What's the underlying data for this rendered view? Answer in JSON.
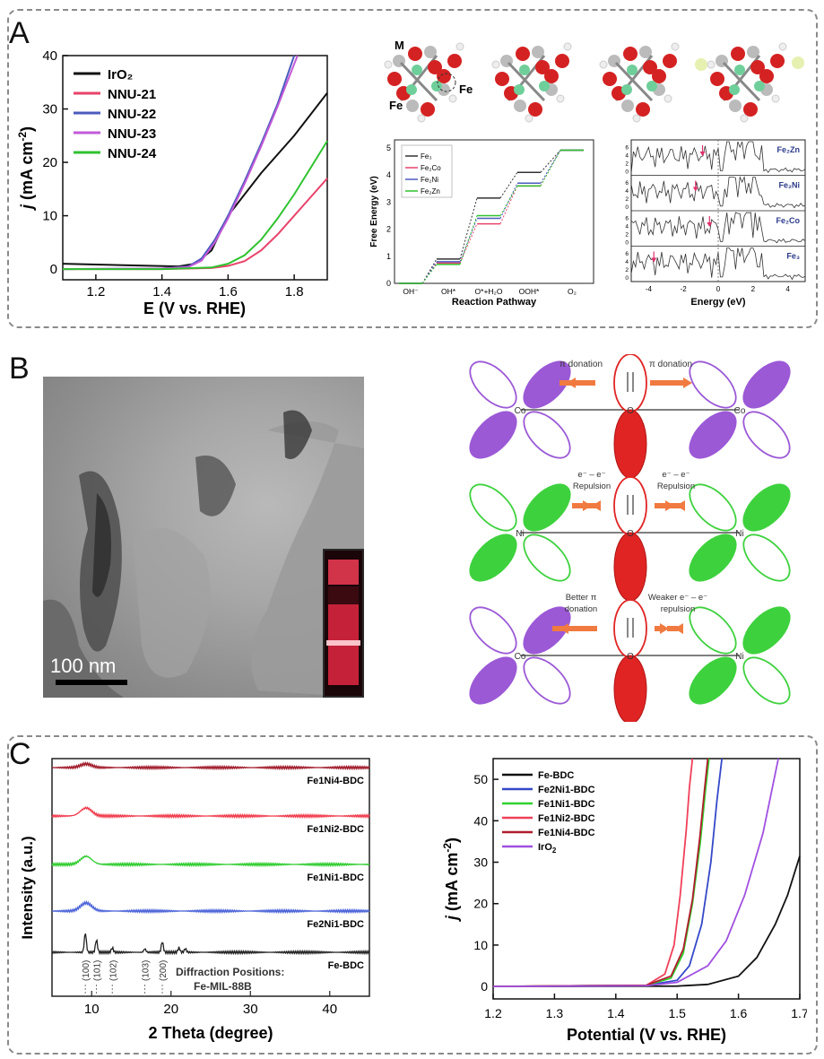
{
  "panels": {
    "a": "A",
    "b": "B",
    "c": "C"
  },
  "panelA": {
    "chart_data": {
      "type": "line",
      "xlabel": "E (V vs. RHE)",
      "ylabel_italic": "j",
      "ylabel_rest": " (mA cm",
      "ylabel_sup": "-2",
      "ylabel_close": ")",
      "xlim": [
        1.1,
        1.9
      ],
      "ylim": [
        -2,
        40
      ],
      "xticks": [
        "1.2",
        "1.4",
        "1.6",
        "1.8"
      ],
      "xtick_values": [
        1.2,
        1.4,
        1.6,
        1.8
      ],
      "yticks": [
        "0",
        "10",
        "20",
        "30",
        "40"
      ],
      "ytick_values": [
        0,
        10,
        20,
        30,
        40
      ],
      "series": [
        {
          "name": "IrO₂",
          "color": "#111111",
          "x": [
            1.1,
            1.3,
            1.45,
            1.5,
            1.55,
            1.6,
            1.7,
            1.8,
            1.9
          ],
          "y": [
            1.0,
            0.7,
            0.5,
            1.0,
            3.5,
            10,
            18,
            25,
            33
          ]
        },
        {
          "name": "NNU-21",
          "color": "#e8436a",
          "x": [
            1.1,
            1.4,
            1.55,
            1.6,
            1.65,
            1.7,
            1.75,
            1.8,
            1.85,
            1.9
          ],
          "y": [
            0.0,
            0.0,
            0.2,
            0.6,
            1.5,
            3.5,
            6.5,
            10,
            13.5,
            17
          ]
        },
        {
          "name": "NNU-22",
          "color": "#4a5bbd",
          "x": [
            1.1,
            1.4,
            1.48,
            1.52,
            1.56,
            1.6,
            1.65,
            1.7,
            1.75,
            1.8
          ],
          "y": [
            0.0,
            0.1,
            0.5,
            2.0,
            5.5,
            10,
            16.5,
            23.5,
            31,
            40
          ]
        },
        {
          "name": "NNU-23",
          "color": "#c35ad8",
          "x": [
            1.1,
            1.4,
            1.48,
            1.52,
            1.56,
            1.6,
            1.65,
            1.7,
            1.75,
            1.81
          ],
          "y": [
            0.0,
            0.1,
            0.4,
            1.6,
            5.0,
            9.5,
            16,
            23,
            30.5,
            40
          ]
        },
        {
          "name": "NNU-24",
          "color": "#2fc22f",
          "x": [
            1.1,
            1.4,
            1.55,
            1.6,
            1.65,
            1.7,
            1.75,
            1.8,
            1.85,
            1.9
          ],
          "y": [
            0.0,
            0.0,
            0.3,
            1.0,
            2.6,
            5.5,
            9.5,
            14,
            19,
            24
          ]
        }
      ]
    },
    "structure_labels": {
      "m": "M",
      "fe_left": "Fe",
      "fe_right": "Fe"
    },
    "free_energy": {
      "chart_data": {
        "type": "line",
        "ylabel": "Free Energy (eV)",
        "xlabel": "Reaction Pathway",
        "categories": [
          "OH⁻",
          "OH*",
          "O*+H₂O",
          "OOH*",
          "O₂"
        ],
        "ylim": [
          0,
          5.3
        ],
        "yticks": [
          "0",
          "1",
          "2",
          "3",
          "4",
          "5"
        ],
        "ytick_values": [
          0,
          1,
          2,
          3,
          4,
          5
        ],
        "series": [
          {
            "name": "Fe₃",
            "color": "#333333",
            "values": [
              0,
              0.9,
              3.15,
              4.1,
              4.92
            ]
          },
          {
            "name": "Fe₂Co",
            "color": "#e8436a",
            "values": [
              0,
              0.75,
              2.2,
              3.6,
              4.92
            ]
          },
          {
            "name": "Fe₂Ni",
            "color": "#4a5bbd",
            "values": [
              0,
              0.8,
              2.4,
              3.7,
              4.92
            ]
          },
          {
            "name": "Fe₂Zn",
            "color": "#2fc22f",
            "values": [
              0,
              0.7,
              2.5,
              3.6,
              4.92
            ]
          }
        ]
      }
    },
    "dos": {
      "xlabel": "Energy (eV)",
      "xticks": [
        "-4",
        "-2",
        "0",
        "2",
        "4"
      ],
      "yticks": [
        "0",
        "2",
        "4",
        "6"
      ],
      "subpanels": [
        "Fe₂Zn",
        "Fe₂Ni",
        "Fe₂Co",
        "Fe₃"
      ]
    }
  },
  "panelB": {
    "scale_bar": "100 nm",
    "rows": [
      {
        "left_atom": "Co",
        "center_atom": "O",
        "right_atom": "Co",
        "left_label": "π donation",
        "right_label": "π donation"
      },
      {
        "left_atom": "Ni",
        "center_atom": "O",
        "right_atom": "Ni",
        "left_label_1": "e⁻ – e⁻",
        "left_label_2": "Repulsion",
        "right_label_1": "e⁻ – e⁻",
        "right_label_2": "Repulsion"
      },
      {
        "left_atom": "Co",
        "center_atom": "O",
        "right_atom": "Ni",
        "left_label_1": "Better π",
        "left_label_2": "donation",
        "right_label_1": "Weaker e⁻ – e⁻",
        "right_label_2": "repulsion"
      }
    ],
    "colors": {
      "co": "#9b59d6",
      "ni": "#3ed13e",
      "o": "#e02424"
    }
  },
  "panelC": {
    "xrd": {
      "chart_data": {
        "type": "line",
        "xlabel": "2 Theta (degree)",
        "ylabel": "Intensity (a.u.)",
        "xlim": [
          5,
          45
        ],
        "xticks": [
          "10",
          "20",
          "30",
          "40"
        ],
        "xtick_values": [
          10,
          20,
          30,
          40
        ],
        "series": [
          {
            "name": "Fe1Ni4-BDC",
            "color": "#a01a2a"
          },
          {
            "name": "Fe1Ni2-BDC",
            "color": "#f03a4a"
          },
          {
            "name": "Fe1Ni1-BDC",
            "color": "#2ecc2e"
          },
          {
            "name": "Fe2Ni1-BDC",
            "color": "#4a63d8"
          },
          {
            "name": "Fe-BDC",
            "color": "#222222"
          }
        ],
        "diffraction_positions": {
          "labels": [
            "(100)",
            "(101)",
            "(102)",
            "(103)",
            "(200)"
          ],
          "x": [
            9.2,
            10.6,
            12.6,
            16.7,
            18.9
          ]
        },
        "annotation_1": "Diffraction Positions:",
        "annotation_2": "Fe-MIL-88B"
      }
    },
    "lsv": {
      "chart_data": {
        "type": "line",
        "xlabel": "Potential (V vs. RHE)",
        "ylabel_italic": "j",
        "ylabel_rest": " (mA cm",
        "ylabel_sup": "-2",
        "ylabel_close": ")",
        "xlim": [
          1.2,
          1.7
        ],
        "ylim": [
          -3,
          55
        ],
        "xticks": [
          "1.2",
          "1.3",
          "1.4",
          "1.5",
          "1.6",
          "1.7"
        ],
        "xtick_values": [
          1.2,
          1.3,
          1.4,
          1.5,
          1.6,
          1.7
        ],
        "yticks": [
          "0",
          "10",
          "20",
          "30",
          "40",
          "50"
        ],
        "ytick_values": [
          0,
          10,
          20,
          30,
          40,
          50
        ],
        "series": [
          {
            "name": "Fe-BDC",
            "color": "#111111",
            "x": [
              1.2,
              1.5,
              1.55,
              1.6,
              1.63,
              1.66,
              1.68,
              1.7
            ],
            "y": [
              0,
              0.1,
              0.5,
              2.5,
              7,
              15,
              22,
              31.5
            ]
          },
          {
            "name": "Fe2Ni1-BDC",
            "color": "#3448c8",
            "x": [
              1.2,
              1.45,
              1.5,
              1.52,
              1.54,
              1.555,
              1.565,
              1.573
            ],
            "y": [
              0,
              0.3,
              1.5,
              5,
              15,
              30,
              45,
              55
            ]
          },
          {
            "name": "Fe1Ni1-BDC",
            "color": "#2fd22f",
            "x": [
              1.2,
              1.45,
              1.49,
              1.51,
              1.525,
              1.538,
              1.546,
              1.552
            ],
            "y": [
              0,
              0.3,
              2,
              8,
              20,
              35,
              47,
              55
            ]
          },
          {
            "name": "Fe1Ni2-BDC",
            "color": "#f0405a",
            "x": [
              1.2,
              1.45,
              1.48,
              1.495,
              1.505,
              1.515,
              1.52,
              1.525
            ],
            "y": [
              0,
              0.3,
              3,
              10,
              22,
              38,
              48,
              55
            ]
          },
          {
            "name": "Fe1Ni4-BDC",
            "color": "#b01d2d",
            "x": [
              1.2,
              1.45,
              1.49,
              1.51,
              1.525,
              1.537,
              1.545,
              1.55
            ],
            "y": [
              0,
              0.3,
              2.5,
              9,
              21,
              36,
              48,
              55
            ]
          },
          {
            "name": "IrO₂",
            "color": "#a050e0",
            "x": [
              1.2,
              1.45,
              1.5,
              1.55,
              1.58,
              1.61,
              1.64,
              1.665
            ],
            "y": [
              0,
              0.2,
              1,
              5,
              11,
              22,
              37,
              55
            ]
          }
        ],
        "legend_iro2_main": "IrO",
        "legend_iro2_sub": "2"
      }
    }
  }
}
